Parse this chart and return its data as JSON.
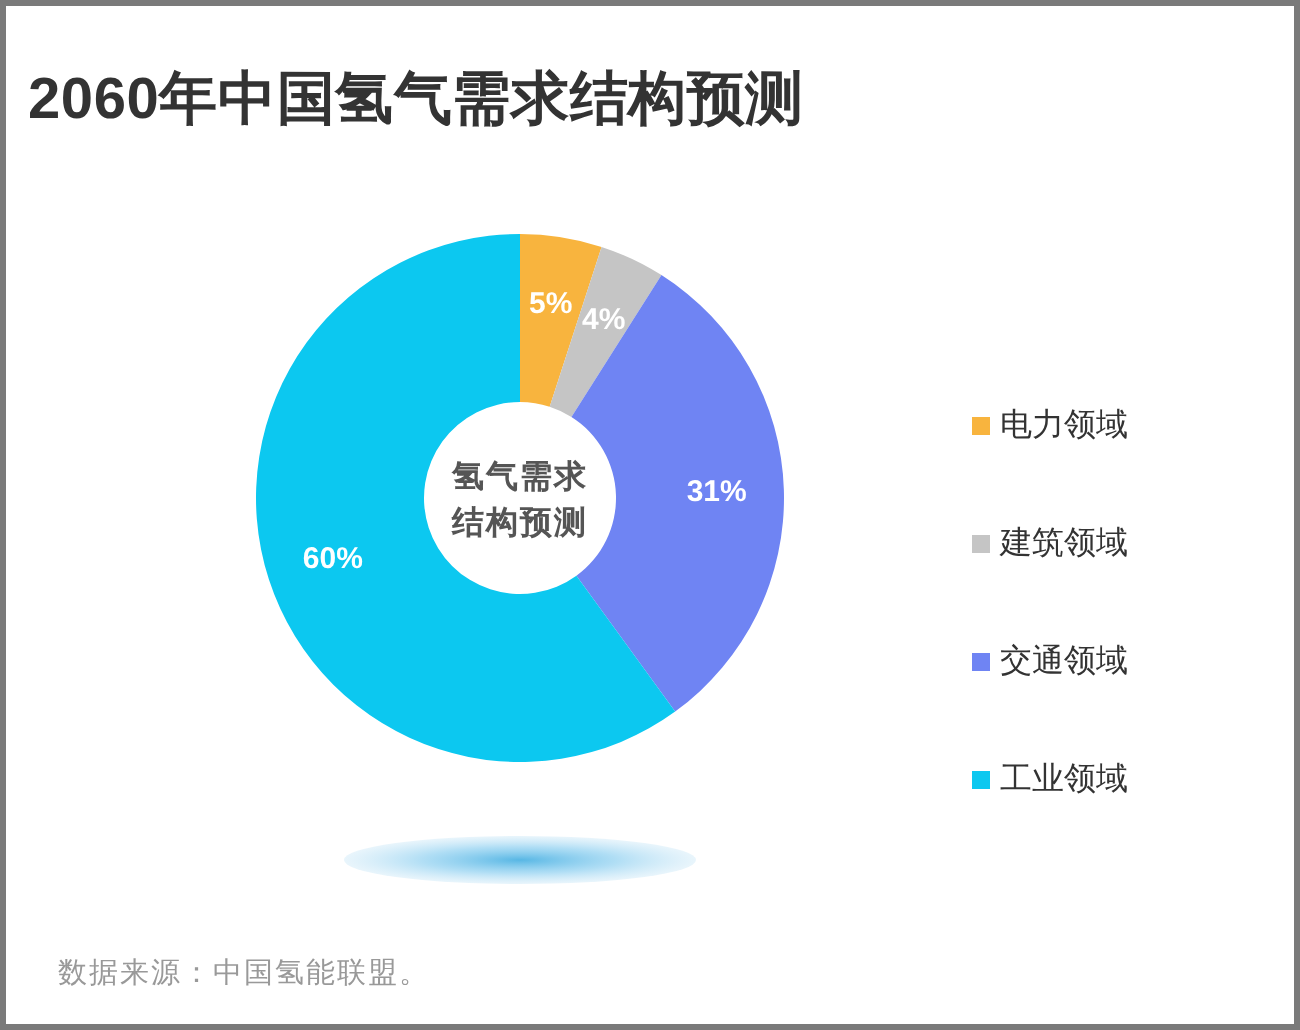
{
  "chart_data": {
    "type": "donut",
    "title": "2060年中国氢气需求结构预测",
    "categories": [
      "电力领域",
      "建筑领域",
      "交通领域",
      "工业领域"
    ],
    "values": [
      5,
      4,
      31,
      60
    ],
    "colors": [
      "#f8b43e",
      "#c5c5c5",
      "#6f84f3",
      "#0cc8f0"
    ],
    "value_labels": [
      "5%",
      "4%",
      "31%",
      "60%"
    ],
    "legend": "right",
    "annotations": [
      "氢气需求结构预测",
      "数据来源：中国氢能联盟。"
    ]
  }
}
